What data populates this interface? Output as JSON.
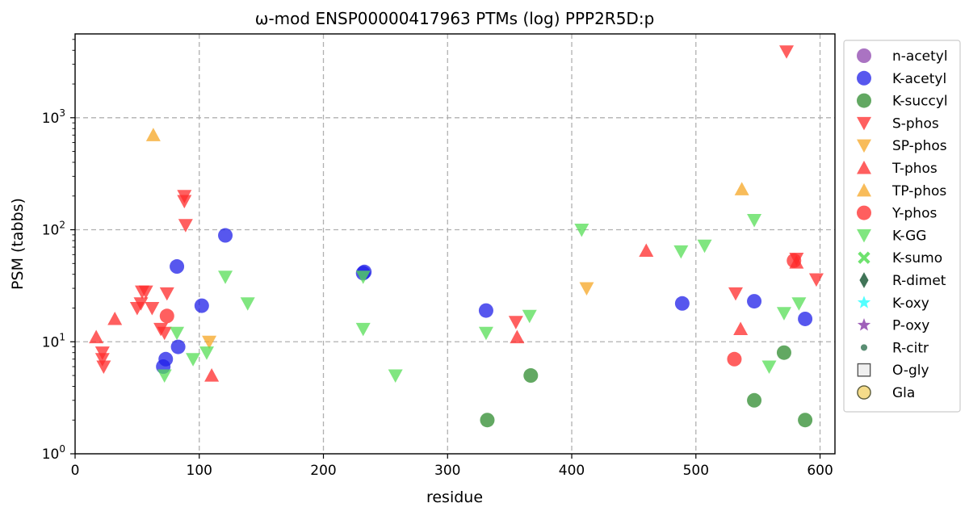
{
  "chart_data": {
    "type": "scatter",
    "title": "ω-mod ENSP00000417963 PTMs (log) PPP2R5D:p",
    "xlabel": "residue",
    "ylabel": "PSM (tabbs)",
    "xlim": [
      0,
      612
    ],
    "ylim": [
      1,
      5600
    ],
    "y_scale": "log",
    "x_ticks": [
      0,
      100,
      200,
      300,
      400,
      500,
      600
    ],
    "x_tick_labels": [
      "0",
      "100",
      "200",
      "300",
      "400",
      "500",
      "600"
    ],
    "y_ticks": [
      1,
      10,
      100,
      1000
    ],
    "y_tick_labels": [
      {
        "base": "10",
        "exp": "0"
      },
      {
        "base": "10",
        "exp": "1"
      },
      {
        "base": "10",
        "exp": "2"
      },
      {
        "base": "10",
        "exp": "3"
      }
    ],
    "grid": true,
    "legend_position": "outside-right",
    "series": [
      {
        "name": "n-acetyl",
        "marker": "circle",
        "color": "#8e44ad",
        "points": []
      },
      {
        "name": "K-acetyl",
        "marker": "circle",
        "color": "#1f1fe8",
        "points": [
          [
            71,
            6
          ],
          [
            73,
            7
          ],
          [
            82,
            47
          ],
          [
            83,
            9
          ],
          [
            102,
            21
          ],
          [
            121,
            89
          ],
          [
            233,
            42
          ],
          [
            232,
            41
          ],
          [
            331,
            19
          ],
          [
            489,
            22
          ],
          [
            547,
            23
          ],
          [
            588,
            16
          ]
        ]
      },
      {
        "name": "K-succyl",
        "marker": "circle",
        "color": "#2e8b2e",
        "points": [
          [
            332,
            2
          ],
          [
            367,
            5
          ],
          [
            547,
            3
          ],
          [
            571,
            8
          ],
          [
            588,
            2
          ]
        ]
      },
      {
        "name": "S-phos",
        "marker": "triangle-down",
        "color": "#ff2a2a",
        "points": [
          [
            22,
            7
          ],
          [
            22,
            8
          ],
          [
            23,
            6
          ],
          [
            50,
            20
          ],
          [
            53,
            22
          ],
          [
            54,
            28
          ],
          [
            57,
            28
          ],
          [
            62,
            20
          ],
          [
            69,
            13
          ],
          [
            72,
            12
          ],
          [
            74,
            27
          ],
          [
            88,
            200
          ],
          [
            88,
            180
          ],
          [
            89,
            110
          ],
          [
            355,
            15
          ],
          [
            532,
            27
          ],
          [
            573,
            3900
          ],
          [
            581,
            55
          ],
          [
            597,
            36
          ]
        ]
      },
      {
        "name": "SP-phos",
        "marker": "triangle-down",
        "color": "#f5a623",
        "points": [
          [
            108,
            10
          ],
          [
            412,
            30
          ]
        ]
      },
      {
        "name": "T-phos",
        "marker": "triangle-up",
        "color": "#ff2a2a",
        "points": [
          [
            17,
            11
          ],
          [
            32,
            16
          ],
          [
            110,
            5
          ],
          [
            356,
            11
          ],
          [
            460,
            65
          ],
          [
            536,
            13
          ],
          [
            581,
            51
          ]
        ]
      },
      {
        "name": "TP-phos",
        "marker": "triangle-up",
        "color": "#f5a623",
        "points": [
          [
            63,
            700
          ],
          [
            537,
            230
          ]
        ]
      },
      {
        "name": "Y-phos",
        "marker": "circle",
        "color": "#ff2a2a",
        "points": [
          [
            74,
            17
          ],
          [
            531,
            7
          ],
          [
            579,
            53
          ]
        ]
      },
      {
        "name": "K-GG",
        "marker": "triangle-down",
        "color": "#55dd55",
        "points": [
          [
            72,
            5
          ],
          [
            82,
            12
          ],
          [
            95,
            7
          ],
          [
            106,
            8
          ],
          [
            121,
            38
          ],
          [
            139,
            22
          ],
          [
            232,
            38
          ],
          [
            232,
            13
          ],
          [
            258,
            5
          ],
          [
            331,
            12
          ],
          [
            366,
            17
          ],
          [
            408,
            100
          ],
          [
            488,
            64
          ],
          [
            507,
            72
          ],
          [
            547,
            122
          ],
          [
            559,
            6
          ],
          [
            571,
            18
          ],
          [
            583,
            22
          ]
        ]
      },
      {
        "name": "K-sumo",
        "marker": "x-thick",
        "color": "#55dd55",
        "points": []
      },
      {
        "name": "R-dimet",
        "marker": "diamond-thin",
        "color": "#1e5c3a",
        "points": []
      },
      {
        "name": "K-oxy",
        "marker": "star",
        "color": "#33ffff",
        "points": []
      },
      {
        "name": "P-oxy",
        "marker": "star",
        "color": "#8e44ad",
        "points": []
      },
      {
        "name": "R-citr",
        "marker": "small-circle",
        "color": "#3d7a5a",
        "points": []
      },
      {
        "name": "O-gly",
        "marker": "square-open",
        "color": "#555555",
        "points": []
      },
      {
        "name": "Gla",
        "marker": "circle-open",
        "color": "#f5dc8a",
        "points": []
      }
    ]
  }
}
